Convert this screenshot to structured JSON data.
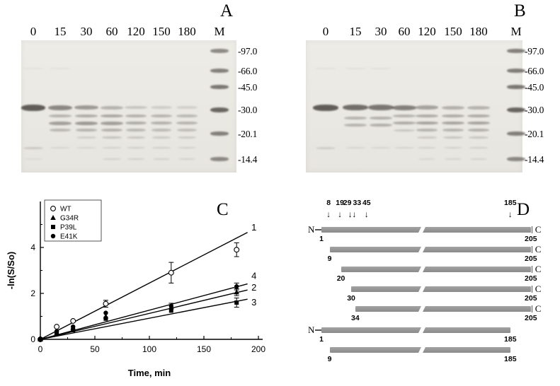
{
  "figure": {
    "panel_a": {
      "label": "A",
      "lane_labels": [
        "0",
        "15",
        "30",
        "60",
        "120",
        "150",
        "180",
        "M"
      ],
      "mw_markers": [
        "-97.0",
        "-66.0",
        "-45.0",
        "-30.0",
        "-20.1",
        "-14.4"
      ]
    },
    "panel_b": {
      "label": "B",
      "lane_labels": [
        "0",
        "15",
        "30",
        "60",
        "120",
        "150",
        "180",
        "M"
      ],
      "mw_markers": [
        "-97.0",
        "-66.0",
        "-45.0",
        "-30.0",
        "-20.1",
        "-14.4"
      ]
    },
    "panel_c": {
      "label": "C"
    },
    "panel_d": {
      "label": "D",
      "cleavage_site_markers": [
        8,
        19,
        29,
        33,
        45,
        185
      ],
      "constructs": [
        {
          "start": 1,
          "end": 205,
          "left_letter": "N",
          "right_letter": "C"
        },
        {
          "start": 9,
          "end": 205,
          "right_letter": "C"
        },
        {
          "start": 20,
          "end": 205,
          "right_letter": "C"
        },
        {
          "start": 30,
          "end": 205,
          "right_letter": "C"
        },
        {
          "start": 34,
          "end": 205,
          "right_letter": "C"
        },
        {
          "start": 1,
          "end": 185,
          "left_letter": "N"
        },
        {
          "start": 9,
          "end": 185
        }
      ]
    }
  },
  "chart_data": {
    "type": "scatter",
    "title": "",
    "xlabel": "Time, min",
    "ylabel": "-ln(S/So)",
    "xlim": [
      0,
      200
    ],
    "ylim": [
      0,
      6
    ],
    "xticks": [
      0,
      50,
      100,
      150,
      200
    ],
    "yticks": [
      0,
      2,
      4
    ],
    "grid": false,
    "legend_position": "top-left",
    "series": [
      {
        "name": "WT",
        "marker": "open-circle",
        "line_label": "1",
        "fit_slope": 0.0245,
        "x": [
          0,
          15,
          30,
          60,
          120,
          180
        ],
        "y": [
          0,
          0.55,
          0.8,
          1.55,
          2.9,
          3.9
        ],
        "yerr": [
          0,
          0,
          0,
          0.15,
          0.45,
          0.3
        ]
      },
      {
        "name": "G34R",
        "marker": "filled-triangle",
        "line_label": "2",
        "fit_slope": 0.0113,
        "x": [
          0,
          15,
          30,
          60,
          120,
          180
        ],
        "y": [
          0,
          0.3,
          0.5,
          1.0,
          1.4,
          2.05
        ],
        "yerr": [
          0,
          0,
          0,
          0,
          0,
          0.15
        ]
      },
      {
        "name": "P39L",
        "marker": "filled-square",
        "line_label": "3",
        "fit_slope": 0.0092,
        "x": [
          0,
          15,
          30,
          60,
          120,
          180
        ],
        "y": [
          0,
          0.25,
          0.4,
          0.9,
          1.25,
          1.6
        ],
        "yerr": [
          0,
          0,
          0,
          0,
          0,
          0.2
        ]
      },
      {
        "name": "E41K",
        "marker": "filled-circle",
        "line_label": "4",
        "fit_slope": 0.0127,
        "x": [
          0,
          15,
          30,
          60,
          120,
          180
        ],
        "y": [
          0,
          0.35,
          0.55,
          1.15,
          1.45,
          2.3
        ],
        "yerr": [
          0,
          0,
          0,
          0,
          0.12,
          0.15
        ]
      }
    ]
  }
}
